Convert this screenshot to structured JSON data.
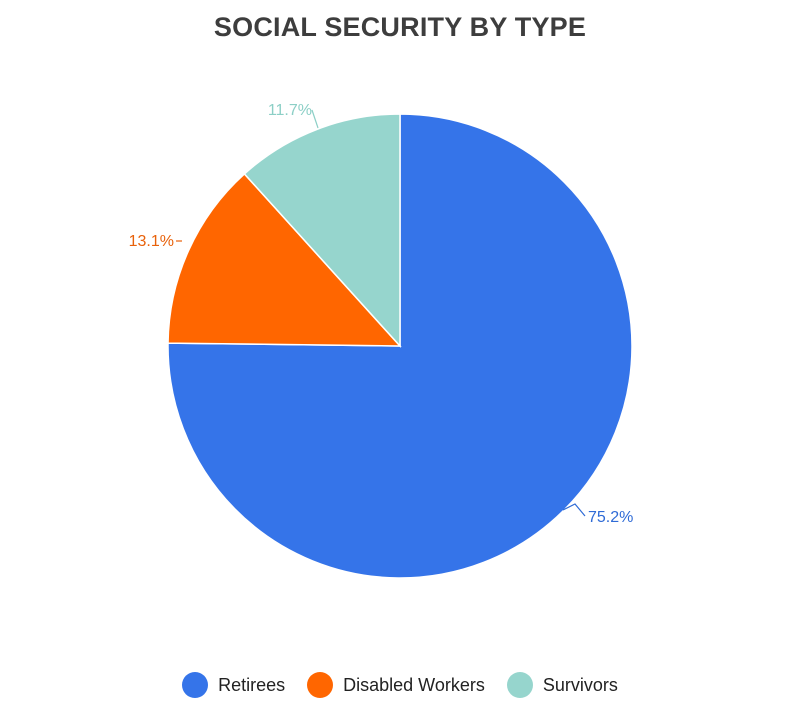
{
  "chart_data": {
    "type": "pie",
    "title": "SOCIAL SECURITY BY TYPE",
    "legend_position": "bottom",
    "slices": [
      {
        "label": "Retirees",
        "value": 75.2,
        "display": "75.2%",
        "color": "#3574e9",
        "label_color": "#2f6bd6"
      },
      {
        "label": "Disabled Workers",
        "value": 13.1,
        "display": "13.1%",
        "color": "#ff6600",
        "label_color": "#e8610a"
      },
      {
        "label": "Survivors",
        "value": 11.7,
        "display": "11.7%",
        "color": "#96d5cd",
        "label_color": "#8ccfc6"
      }
    ]
  }
}
